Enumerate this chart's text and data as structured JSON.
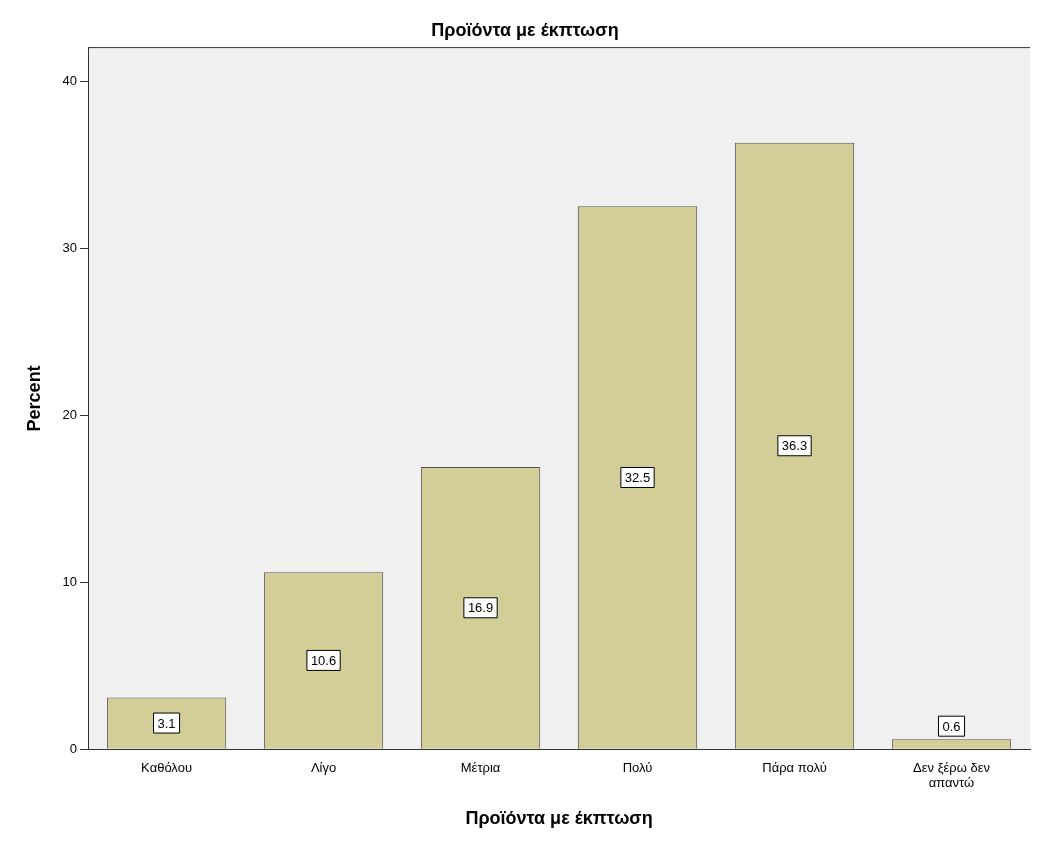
{
  "chart_data": {
    "type": "bar",
    "title": "Προϊόντα με έκπτωση",
    "xlabel": "Προϊόντα με έκπτωση",
    "ylabel": "Percent",
    "categories": [
      "Καθόλου",
      "Λίγο",
      "Μέτρια",
      "Πολύ",
      "Πάρα πολύ",
      "Δεν ξέρω δεν απαντώ"
    ],
    "values": [
      3.1,
      10.6,
      16.9,
      32.5,
      36.3,
      0.6
    ],
    "color": "#d3ce97",
    "ylim": [
      0,
      42
    ],
    "yticks": [
      0,
      10,
      20,
      30,
      40
    ],
    "grid": false,
    "legend": false,
    "data_labels": true
  }
}
